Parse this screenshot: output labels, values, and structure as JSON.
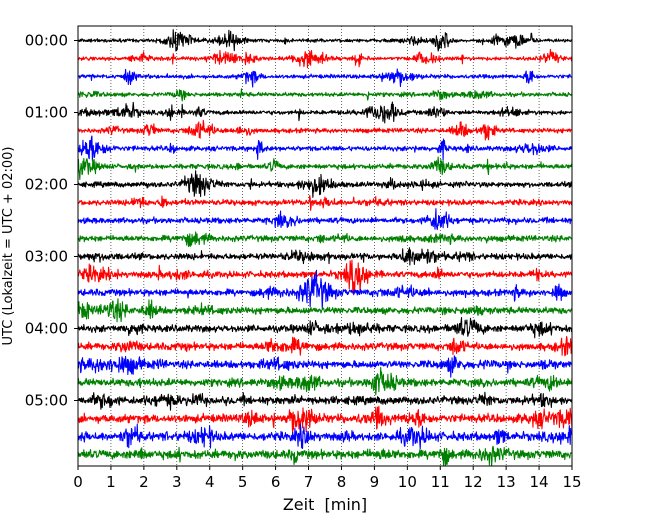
{
  "chart_data": {
    "type": "line",
    "title": "",
    "xlabel": "Zeit  [min]",
    "ylabel": "UTC (Lokalzeit = UTC + 02:00)",
    "xlim": [
      0,
      15
    ],
    "x_ticks": [
      "0",
      "1",
      "2",
      "3",
      "4",
      "5",
      "6",
      "7",
      "8",
      "9",
      "10",
      "11",
      "12",
      "13",
      "14",
      "15"
    ],
    "y_ticks": [
      "00:00",
      "01:00",
      "02:00",
      "03:00",
      "04:00",
      "05:00"
    ],
    "grid": "vertical dotted",
    "trace_minutes_per_line": 15,
    "trace_count": 24,
    "trace_colors": [
      "#000000",
      "#ff0000",
      "#0000ff",
      "#008000"
    ]
  }
}
